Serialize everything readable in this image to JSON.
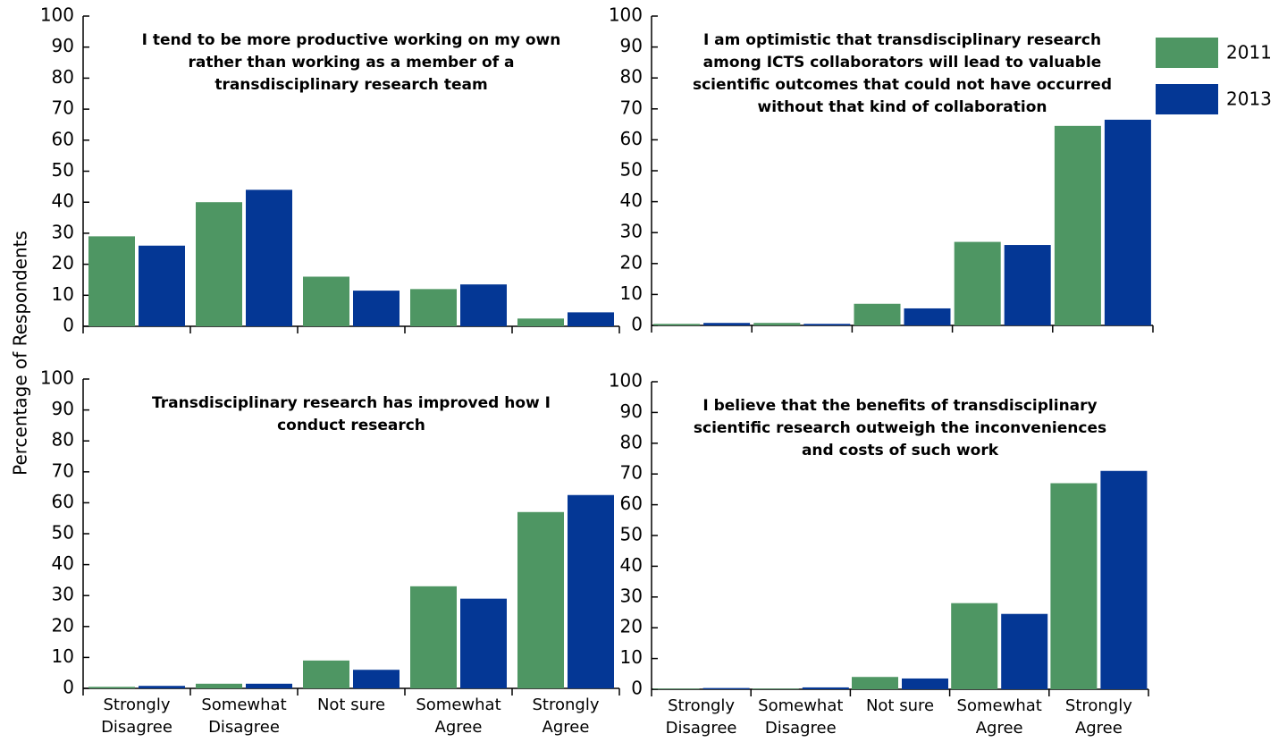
{
  "y_label": "Percentage of Respondents",
  "chart_data": [
    {
      "type": "bar",
      "title": "I tend to be more productive working on my own rather than working as a member of a transdisciplinary research team",
      "categories": [
        null,
        null,
        null,
        null,
        null
      ],
      "series": [
        {
          "color": "#4e9663",
          "values": [
            29,
            40,
            16,
            12,
            2.5
          ]
        },
        {
          "color": "#043795",
          "values": [
            26,
            44,
            11.5,
            13.5,
            4.5
          ]
        }
      ],
      "ylim": [
        0,
        100
      ],
      "yticks": [
        0,
        10,
        20,
        30,
        40,
        50,
        60,
        70,
        80,
        90,
        100
      ]
    },
    {
      "type": "bar",
      "title": "I am optimistic that transdisciplinary research among ICTS collaborators will lead to valuable scientific outcomes that could not have occurred without that kind of collaboration",
      "categories": [
        null,
        null,
        null,
        null,
        null
      ],
      "series": [
        {
          "name": "2011",
          "color": "#4e9663",
          "values": [
            0.5,
            0.8,
            7,
            27,
            64.5
          ]
        },
        {
          "name": "2013",
          "color": "#043795",
          "values": [
            0.8,
            0.5,
            5.5,
            26,
            66.5
          ]
        }
      ],
      "ylim": [
        0,
        100
      ],
      "yticks": [
        0,
        10,
        20,
        30,
        40,
        50,
        60,
        70,
        80,
        90,
        100
      ],
      "legend": "right"
    },
    {
      "type": "bar",
      "title": "Transdisciplinary research has improved how I conduct research",
      "categories": [
        "Strongly Disagree",
        "Somewhat Disagree",
        "Not sure",
        "Somewhat Agree",
        "Strongly Agree"
      ],
      "series": [
        {
          "color": "#4e9663",
          "values": [
            0.5,
            1.5,
            9,
            33,
            57
          ]
        },
        {
          "color": "#043795",
          "values": [
            0.8,
            1.5,
            6,
            29,
            62.5
          ]
        }
      ],
      "ylim": [
        0,
        100
      ],
      "yticks": [
        0,
        10,
        20,
        30,
        40,
        50,
        60,
        70,
        80,
        90,
        100
      ]
    },
    {
      "type": "bar",
      "title": "I believe that the benefits of transdisciplinary scientific research outweigh the inconveniences and costs of such work",
      "categories": [
        "Strongly Disagree",
        "Somewhat Disagree",
        "Not sure",
        "Somewhat Agree",
        "Strongly Agree"
      ],
      "series": [
        {
          "color": "#4e9663",
          "values": [
            0.2,
            0.2,
            4,
            28,
            67
          ]
        },
        {
          "color": "#043795",
          "values": [
            0.4,
            0.6,
            3.5,
            24.5,
            71
          ]
        }
      ],
      "ylim": [
        0,
        100
      ],
      "yticks": [
        0,
        10,
        20,
        30,
        40,
        50,
        60,
        70,
        80,
        90,
        100
      ]
    }
  ]
}
